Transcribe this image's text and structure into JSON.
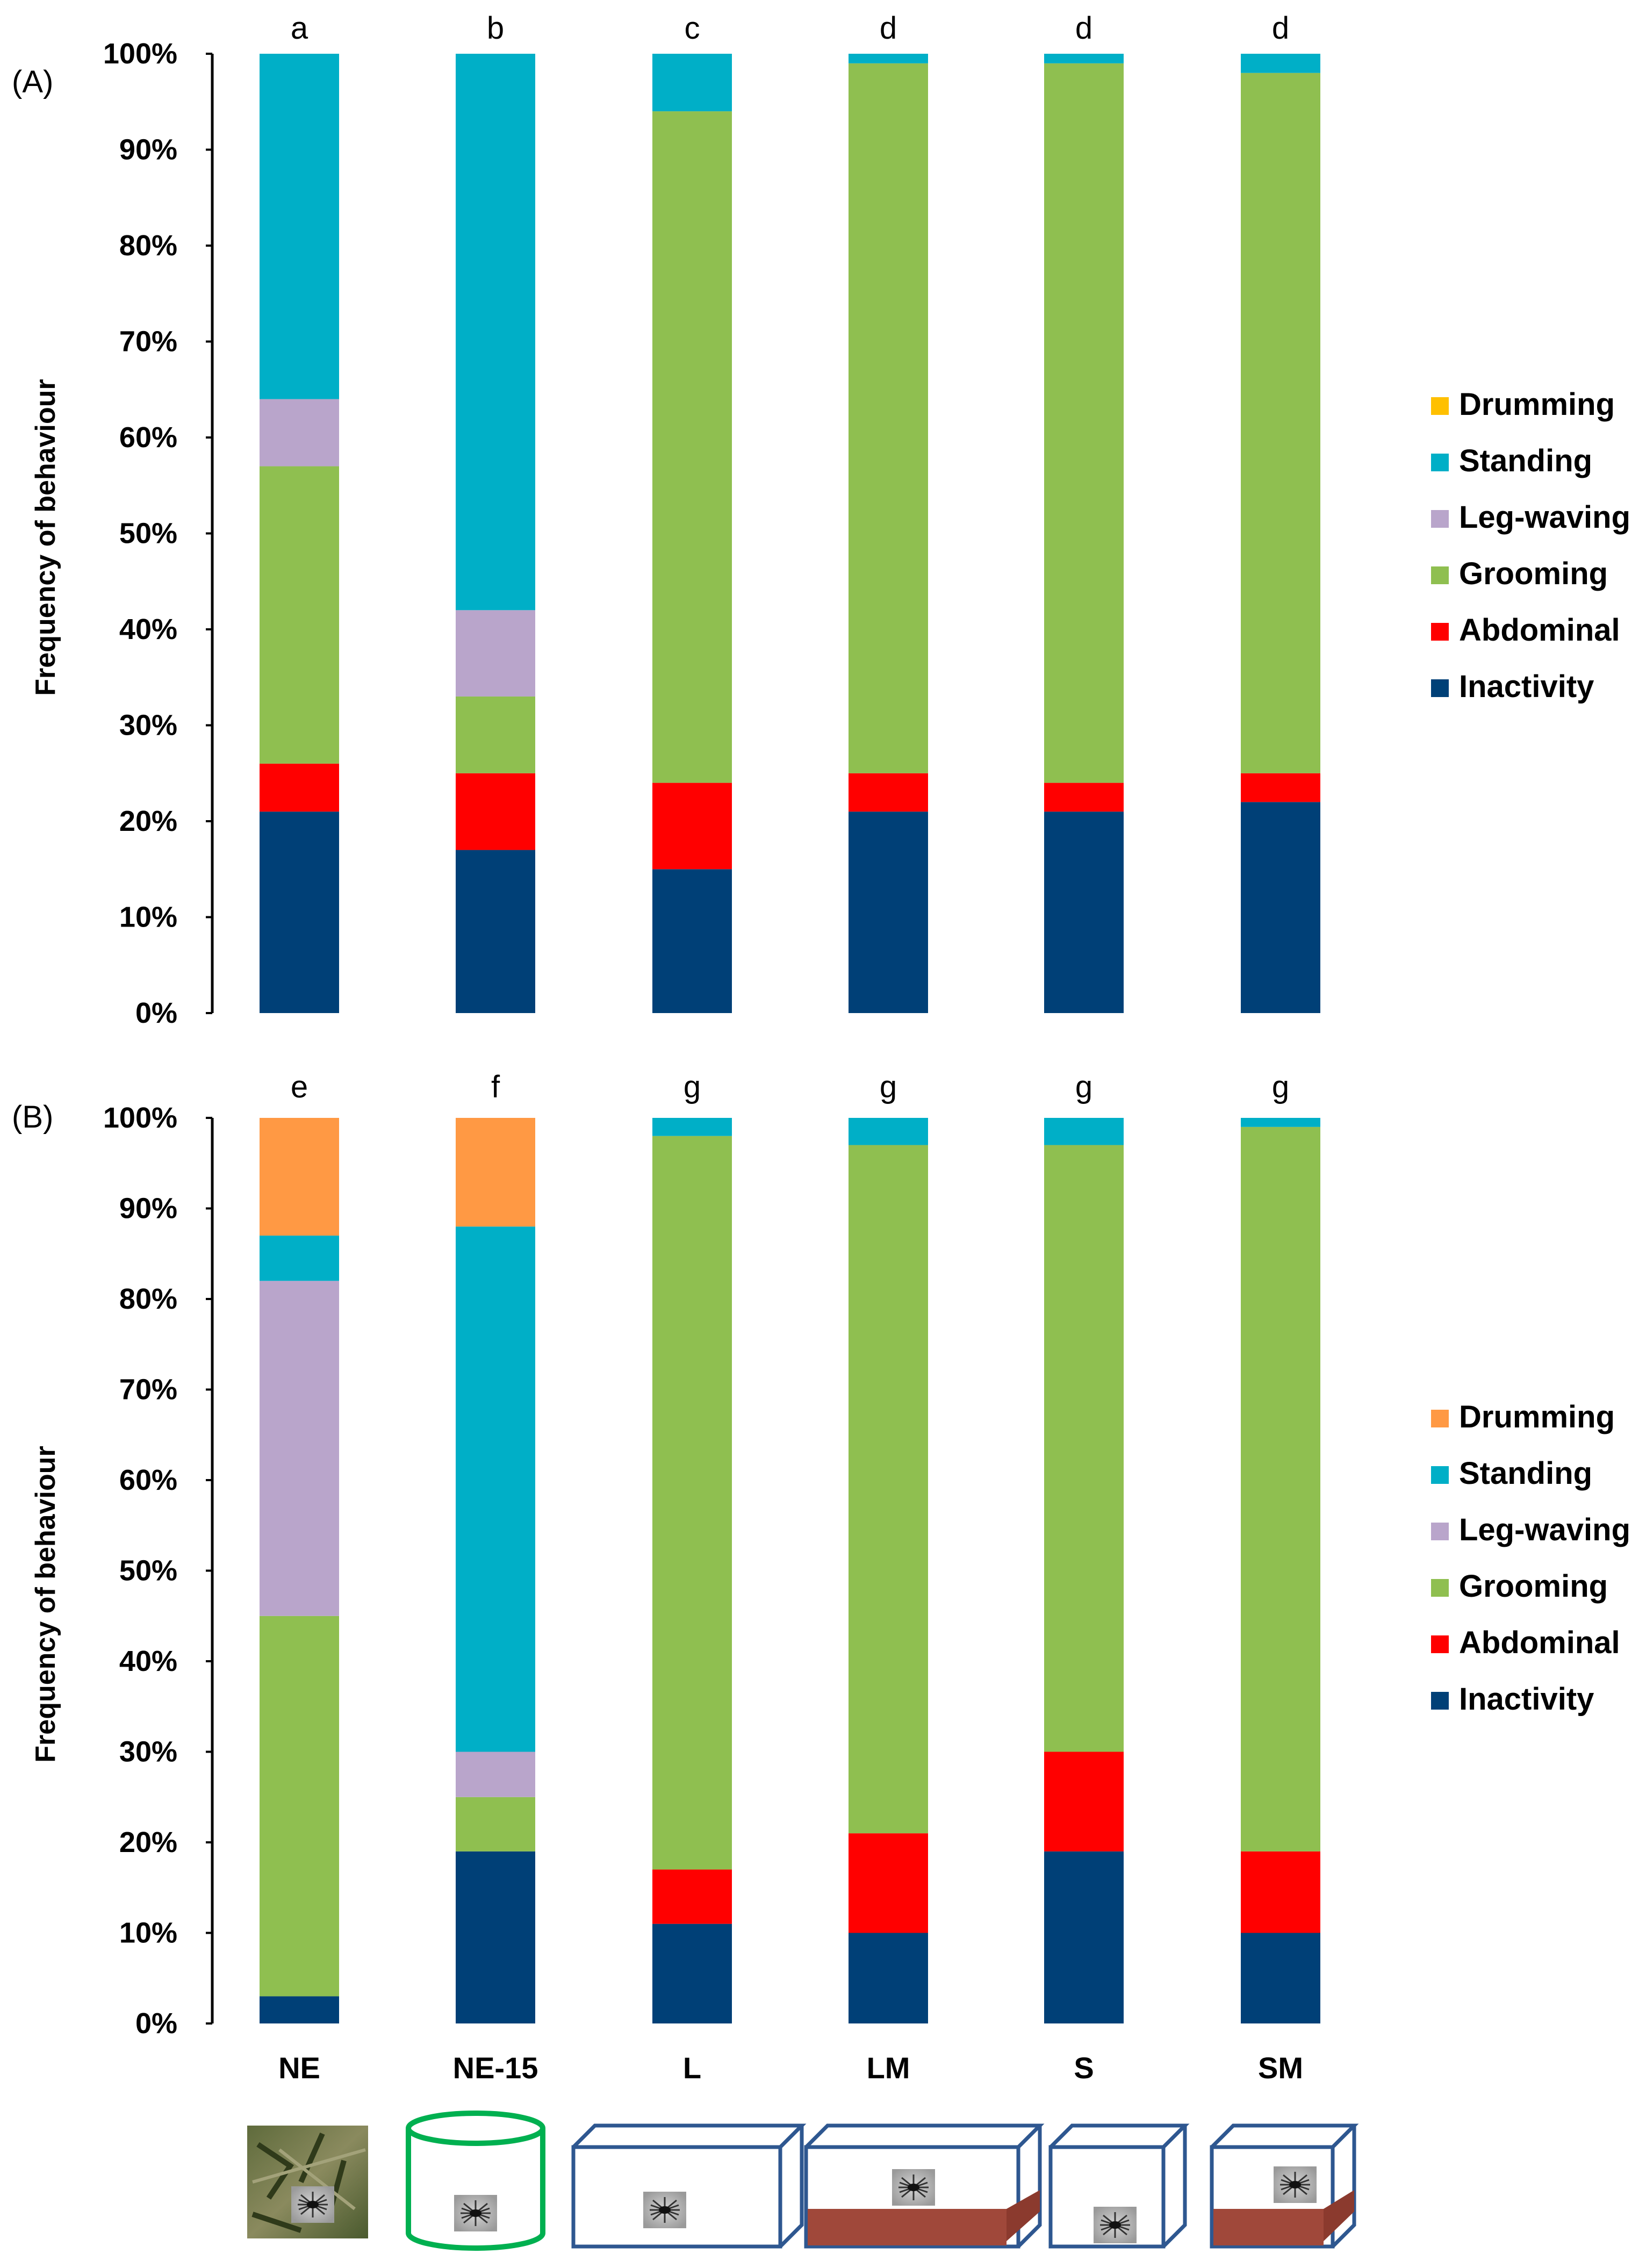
{
  "chart_data": [
    {
      "panel": "(A)",
      "type": "bar",
      "stacked": true,
      "ylabel": "Frequency of behaviour",
      "ylim": [
        0,
        100
      ],
      "yticks": [
        "0%",
        "10%",
        "20%",
        "30%",
        "40%",
        "50%",
        "60%",
        "70%",
        "80%",
        "90%",
        "100%"
      ],
      "categories": [
        "NE",
        "NE-15",
        "L",
        "LM",
        "S",
        "SM"
      ],
      "significance_letters": [
        "a",
        "b",
        "c",
        "d",
        "d",
        "d"
      ],
      "legend_position": "right",
      "series": [
        {
          "name": "Inactivity",
          "color": "#004077",
          "values": [
            21,
            17,
            15,
            21,
            21,
            22
          ]
        },
        {
          "name": "Abdominal",
          "color": "#FF0000",
          "values": [
            5,
            8,
            9,
            4,
            3,
            3
          ]
        },
        {
          "name": "Grooming",
          "color": "#8FBF50",
          "values": [
            31,
            8,
            70,
            74,
            75,
            73
          ]
        },
        {
          "name": "Leg-waving",
          "color": "#B9A5CB",
          "values": [
            7,
            9,
            0,
            0,
            0,
            0
          ]
        },
        {
          "name": "Standing",
          "color": "#00AFC7",
          "values": [
            36,
            58,
            6,
            1,
            1,
            2
          ]
        },
        {
          "name": "Drumming",
          "color": "#FFC000",
          "values": [
            0,
            0,
            0,
            0,
            0,
            0
          ]
        }
      ]
    },
    {
      "panel": "(B)",
      "type": "bar",
      "stacked": true,
      "ylabel": "Frequency of behaviour",
      "ylim": [
        0,
        100
      ],
      "yticks": [
        "0%",
        "10%",
        "20%",
        "30%",
        "40%",
        "50%",
        "60%",
        "70%",
        "80%",
        "90%",
        "100%"
      ],
      "categories": [
        "NE",
        "NE-15",
        "L",
        "LM",
        "S",
        "SM"
      ],
      "significance_letters": [
        "e",
        "f",
        "g",
        "g",
        "g",
        "g"
      ],
      "legend_position": "right",
      "series": [
        {
          "name": "Inactivity",
          "color": "#004077",
          "values": [
            3,
            19,
            11,
            10,
            19,
            10
          ]
        },
        {
          "name": "Abdominal",
          "color": "#FF0000",
          "values": [
            0,
            0,
            6,
            11,
            11,
            9
          ]
        },
        {
          "name": "Grooming",
          "color": "#8FBF50",
          "values": [
            42,
            6,
            81,
            76,
            67,
            80
          ]
        },
        {
          "name": "Leg-waving",
          "color": "#B9A5CB",
          "values": [
            37,
            5,
            0,
            0,
            0,
            0
          ]
        },
        {
          "name": "Standing",
          "color": "#00AFC7",
          "values": [
            5,
            58,
            2,
            3,
            3,
            1
          ]
        },
        {
          "name": "Drumming",
          "color": "#FF9944",
          "values": [
            13,
            12,
            0,
            0,
            0,
            0
          ]
        }
      ]
    }
  ],
  "icons": [
    "natural-environment-photo-icon",
    "cylinder-arena-icon",
    "box-arena-icon",
    "box-arena-with-moss-icon",
    "small-box-arena-icon",
    "small-box-arena-with-moss-icon"
  ]
}
